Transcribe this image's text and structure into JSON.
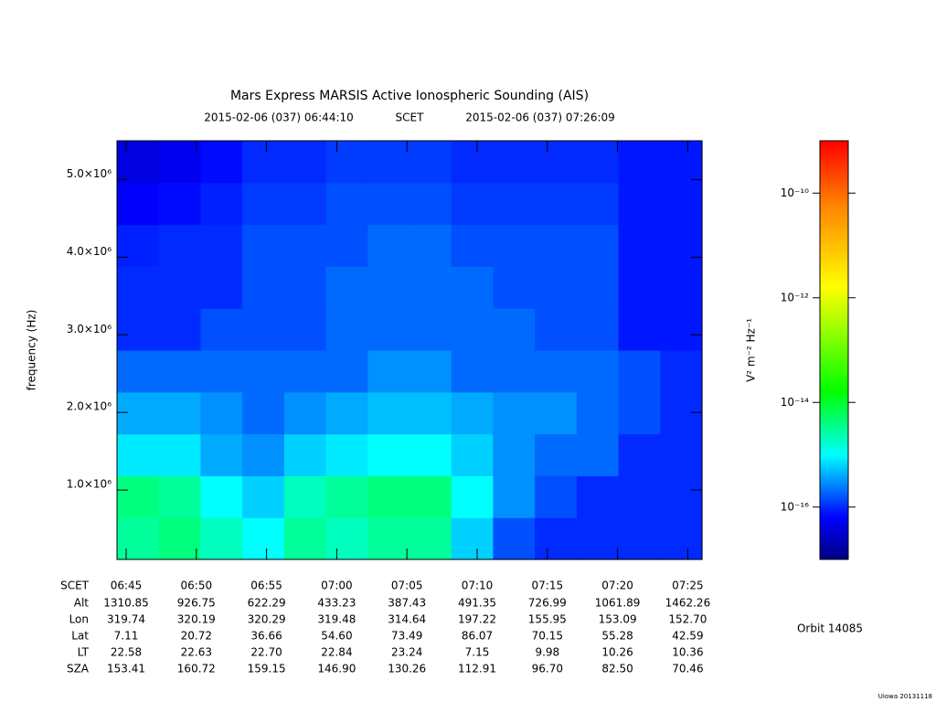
{
  "chart_data": {
    "type": "heatmap",
    "title": "Mars Express MARSIS Active Ionospheric Sounding (AIS)",
    "subtitle_start": "2015-02-06 (037) 06:44:10",
    "subtitle_mid": "SCET",
    "subtitle_end": "2015-02-06 (037) 07:26:09",
    "y_label": "frequency (Hz)",
    "colorbar_label": "V² m⁻² Hz⁻¹",
    "orbit": "Orbit 14085",
    "footer": "Uiowa 20131118",
    "categories_label": "SCET",
    "categories": [
      "06:45",
      "06:50",
      "06:55",
      "07:00",
      "07:05",
      "07:10",
      "07:15",
      "07:20",
      "07:25"
    ],
    "ylim": [
      106000,
      5500000
    ],
    "yticks": [
      {
        "value": 1000000,
        "label": "1.0×10⁶"
      },
      {
        "value": 2000000,
        "label": "2.0×10⁶"
      },
      {
        "value": 3000000,
        "label": "3.0×10⁶"
      },
      {
        "value": 4000000,
        "label": "4.0×10⁶"
      },
      {
        "value": 5000000,
        "label": "5.0×10⁶"
      }
    ],
    "zlim": [
      1e-17,
      1e-09
    ],
    "zscale": "log",
    "zticks": [
      {
        "value": 1e-16,
        "label": "10⁻¹⁶"
      },
      {
        "value": 1e-14,
        "label": "10⁻¹⁴"
      },
      {
        "value": 1e-12,
        "label": "10⁻¹²"
      },
      {
        "value": 1e-10,
        "label": "10⁻¹⁰"
      }
    ],
    "colormap": [
      [
        0,
        "#000080"
      ],
      [
        0.1,
        "#0000ff"
      ],
      [
        0.25,
        "#00ffff"
      ],
      [
        0.4,
        "#00ff00"
      ],
      [
        0.65,
        "#ffff00"
      ],
      [
        0.85,
        "#ff8000"
      ],
      [
        1,
        "#ff0000"
      ]
    ],
    "z": [
      [
        3e-15,
        4e-15,
        2e-15,
        1e-15,
        3e-15,
        2e-15,
        3e-15,
        3e-15,
        6e-16,
        1.5e-16,
        1e-16,
        1e-16,
        1e-16,
        1e-16
      ],
      [
        4e-15,
        3e-15,
        1e-15,
        6e-16,
        2e-15,
        3e-15,
        4e-15,
        4e-15,
        1e-15,
        3e-16,
        1.5e-16,
        1e-16,
        1e-16,
        1e-16
      ],
      [
        8e-16,
        8e-16,
        4e-16,
        3e-16,
        6e-16,
        8e-16,
        1e-15,
        1e-15,
        6e-16,
        3e-16,
        2e-16,
        2e-16,
        1e-16,
        1e-16
      ],
      [
        4e-16,
        4e-16,
        3e-16,
        2e-16,
        3e-16,
        4e-16,
        5e-16,
        5e-16,
        4e-16,
        3e-16,
        3e-16,
        2e-16,
        1.5e-16,
        1e-16
      ],
      [
        2e-16,
        2e-16,
        2e-16,
        2e-16,
        2e-16,
        2e-16,
        3e-16,
        3e-16,
        2e-16,
        2e-16,
        2e-16,
        2e-16,
        1.5e-16,
        1e-16
      ],
      [
        1e-16,
        1e-16,
        1.5e-16,
        1.5e-16,
        1.5e-16,
        2e-16,
        2e-16,
        2e-16,
        2e-16,
        2e-16,
        1.5e-16,
        1.5e-16,
        8e-17,
        8e-17
      ],
      [
        1e-16,
        1e-16,
        1e-16,
        1.5e-16,
        1.5e-16,
        2e-16,
        2e-16,
        2e-16,
        2e-16,
        1.5e-16,
        1.5e-16,
        1.5e-16,
        8e-17,
        8e-17
      ],
      [
        9e-17,
        1e-16,
        1e-16,
        1.5e-16,
        1.5e-16,
        1.5e-16,
        2e-16,
        2e-16,
        1.5e-16,
        1.5e-16,
        1.5e-16,
        1.5e-16,
        8e-17,
        8e-17
      ],
      [
        6e-17,
        7e-17,
        9e-17,
        1.2e-16,
        1.2e-16,
        1.5e-16,
        1.5e-16,
        1.5e-16,
        1.2e-16,
        1.2e-16,
        1.2e-16,
        1.2e-16,
        8e-17,
        8e-17
      ],
      [
        4e-17,
        5e-17,
        7e-17,
        1e-16,
        1e-16,
        1.2e-16,
        1.2e-16,
        1.2e-16,
        1e-16,
        1e-16,
        1e-16,
        1e-16,
        8e-17,
        8e-17
      ]
    ],
    "ephemeris": {
      "row_labels": [
        "Alt",
        "Lon",
        "Lat",
        "LT",
        "SZA"
      ],
      "rows": [
        [
          "1310.85",
          "926.75",
          "622.29",
          "433.23",
          "387.43",
          "491.35",
          "726.99",
          "1061.89",
          "1462.26"
        ],
        [
          "319.74",
          "320.19",
          "320.29",
          "319.48",
          "314.64",
          "197.22",
          "155.95",
          "153.09",
          "152.70"
        ],
        [
          "7.11",
          "20.72",
          "36.66",
          "54.60",
          "73.49",
          "86.07",
          "70.15",
          "55.28",
          "42.59"
        ],
        [
          "22.58",
          "22.63",
          "22.70",
          "22.84",
          "23.24",
          "7.15",
          "9.98",
          "10.26",
          "10.36"
        ],
        [
          "153.41",
          "160.72",
          "159.15",
          "146.90",
          "130.26",
          "112.91",
          "96.70",
          "82.50",
          "70.46"
        ]
      ]
    }
  }
}
